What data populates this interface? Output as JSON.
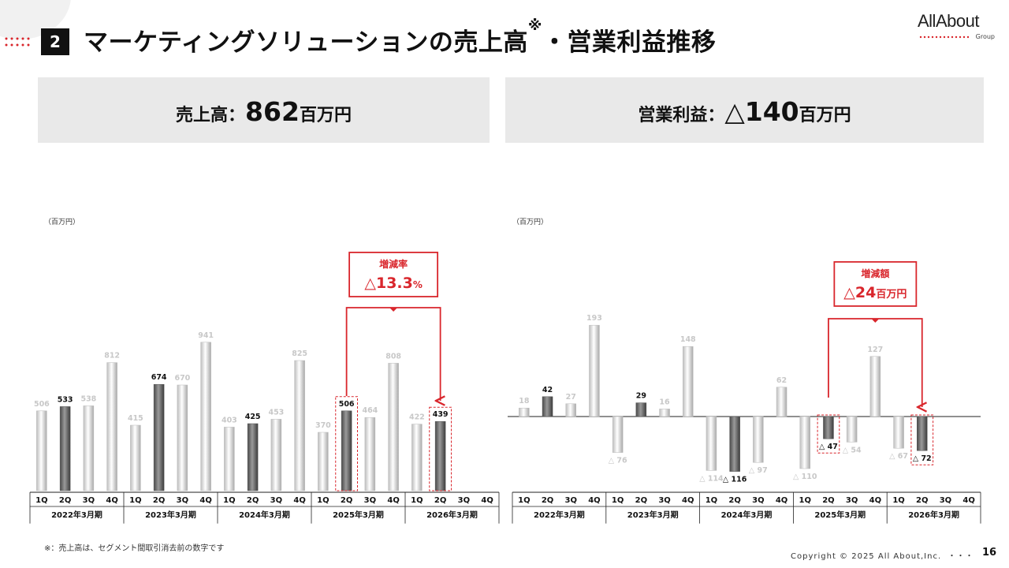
{
  "header": {
    "section_number": "2",
    "title": "マーケティングソリューションの売上高",
    "title_mark": "※",
    "title_suffix": "・営業利益推移"
  },
  "logo": {
    "text": "AllAbout",
    "sub": "Group",
    "accent_color": "#d9262c"
  },
  "summary": {
    "sales": {
      "label": "売上高：",
      "value": "862",
      "unit": "百万円"
    },
    "profit": {
      "label": "営業利益：",
      "value": "△140",
      "unit": "百万円"
    }
  },
  "footer": {
    "footnote": "※：売上高は、セグメント間取引消去前の数字です",
    "copyright": "Copyright © 2025 All About,Inc.",
    "dots": "・・・",
    "page": "16"
  },
  "chart_data": [
    {
      "type": "bar",
      "unit_label": "（百万円）",
      "quarters": [
        "1Q",
        "2Q",
        "3Q",
        "4Q"
      ],
      "years": [
        "2022年3月期",
        "2023年3月期",
        "2024年3月期",
        "2025年3月期",
        "2026年3月期"
      ],
      "values": [
        506,
        533,
        538,
        812,
        415,
        674,
        670,
        941,
        403,
        425,
        453,
        825,
        370,
        506,
        464,
        808,
        422,
        439,
        null,
        null
      ],
      "labels": [
        "506",
        "533",
        "538",
        "812",
        "415",
        "674",
        "670",
        "941",
        "403",
        "425",
        "453",
        "825",
        "370",
        "506",
        "464",
        "808",
        "422",
        "439",
        "",
        ""
      ],
      "highlight_quarter": 1,
      "boxed_indices": [
        13,
        17
      ],
      "ylim": [
        0,
        1000
      ],
      "callout": {
        "title": "増減率",
        "value": "△13.3",
        "unit": "%"
      }
    },
    {
      "type": "bar",
      "unit_label": "（百万円）",
      "quarters": [
        "1Q",
        "2Q",
        "3Q",
        "4Q"
      ],
      "years": [
        "2022年3月期",
        "2023年3月期",
        "2024年3月期",
        "2025年3月期",
        "2026年3月期"
      ],
      "values": [
        18,
        42,
        27,
        193,
        -76,
        29,
        16,
        148,
        -114,
        -116,
        -97,
        62,
        -110,
        -47,
        -54,
        127,
        -67,
        -72,
        null,
        null
      ],
      "labels": [
        "18",
        "42",
        "27",
        "193",
        "△ 76",
        "29",
        "16",
        "148",
        "△ 114",
        "△ 116",
        "△ 97",
        "62",
        "△ 110",
        "△ 47",
        "△ 54",
        "127",
        "△ 67",
        "△ 72",
        "",
        ""
      ],
      "highlight_quarter": 1,
      "boxed_indices": [
        13,
        17
      ],
      "ylim": [
        -150,
        200
      ],
      "callout": {
        "title": "増減額",
        "value": "△24",
        "unit": "百万円"
      }
    }
  ]
}
